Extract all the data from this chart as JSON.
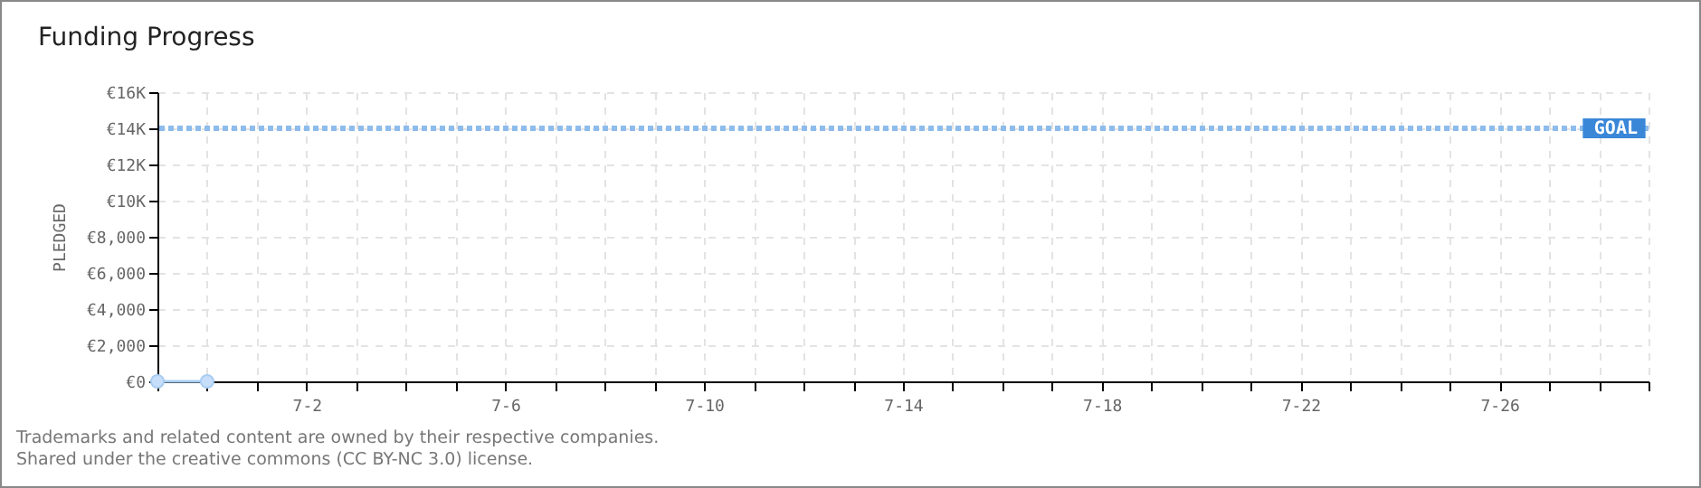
{
  "chart_data": {
    "type": "line",
    "title": "Funding Progress",
    "ylabel": "PLEDGED",
    "annotations": [
      "Trademarks and related content are owned by their respective companies.",
      "Shared under the creative commons (CC BY-NC 3.0) license."
    ],
    "series": [
      {
        "color": "#a9cdf2",
        "x": [
          "--06-29",
          "--06-30"
        ],
        "values": [
          0,
          0
        ]
      }
    ],
    "marker": "circle",
    "grid": true,
    "xlim": [
      "--06-29",
      "--07-29"
    ],
    "xticks": [
      {
        "value": "--06-29",
        "label": null
      },
      {
        "value": "--06-30",
        "label": null
      },
      {
        "value": "--07-01",
        "label": null
      },
      {
        "value": "--07-02",
        "label": "7-2"
      },
      {
        "value": "--07-03",
        "label": null
      },
      {
        "value": "--07-04",
        "label": null
      },
      {
        "value": "--07-05",
        "label": null
      },
      {
        "value": "--07-06",
        "label": "7-6"
      },
      {
        "value": "--07-07",
        "label": null
      },
      {
        "value": "--07-08",
        "label": null
      },
      {
        "value": "--07-09",
        "label": null
      },
      {
        "value": "--07-10",
        "label": "7-10"
      },
      {
        "value": "--07-11",
        "label": null
      },
      {
        "value": "--07-12",
        "label": null
      },
      {
        "value": "--07-13",
        "label": null
      },
      {
        "value": "--07-14",
        "label": "7-14"
      },
      {
        "value": "--07-15",
        "label": null
      },
      {
        "value": "--07-16",
        "label": null
      },
      {
        "value": "--07-17",
        "label": null
      },
      {
        "value": "--07-18",
        "label": "7-18"
      },
      {
        "value": "--07-19",
        "label": null
      },
      {
        "value": "--07-20",
        "label": null
      },
      {
        "value": "--07-21",
        "label": null
      },
      {
        "value": "--07-22",
        "label": "7-22"
      },
      {
        "value": "--07-23",
        "label": null
      },
      {
        "value": "--07-24",
        "label": null
      },
      {
        "value": "--07-25",
        "label": null
      },
      {
        "value": "--07-26",
        "label": "7-26"
      },
      {
        "value": "--07-27",
        "label": null
      },
      {
        "value": "--07-28",
        "label": null
      },
      {
        "value": "--07-29",
        "label": null
      }
    ],
    "ylim": [
      0,
      16000
    ],
    "yticks": [
      {
        "value": 0,
        "label": "€0"
      },
      {
        "value": 2000,
        "label": "€2,000"
      },
      {
        "value": 4000,
        "label": "€4,000"
      },
      {
        "value": 6000,
        "label": "€6,000"
      },
      {
        "value": 8000,
        "label": "€8,000"
      },
      {
        "value": 10000,
        "label": "€10K"
      },
      {
        "value": 12000,
        "label": "€12K"
      },
      {
        "value": 14000,
        "label": "€14K"
      },
      {
        "value": 16000,
        "label": "€16K"
      }
    ],
    "ref_lines": [
      {
        "axis": "y",
        "value": 14000,
        "label": "GOAL",
        "color": "#8dbcec",
        "line_style": "dotted"
      }
    ]
  }
}
